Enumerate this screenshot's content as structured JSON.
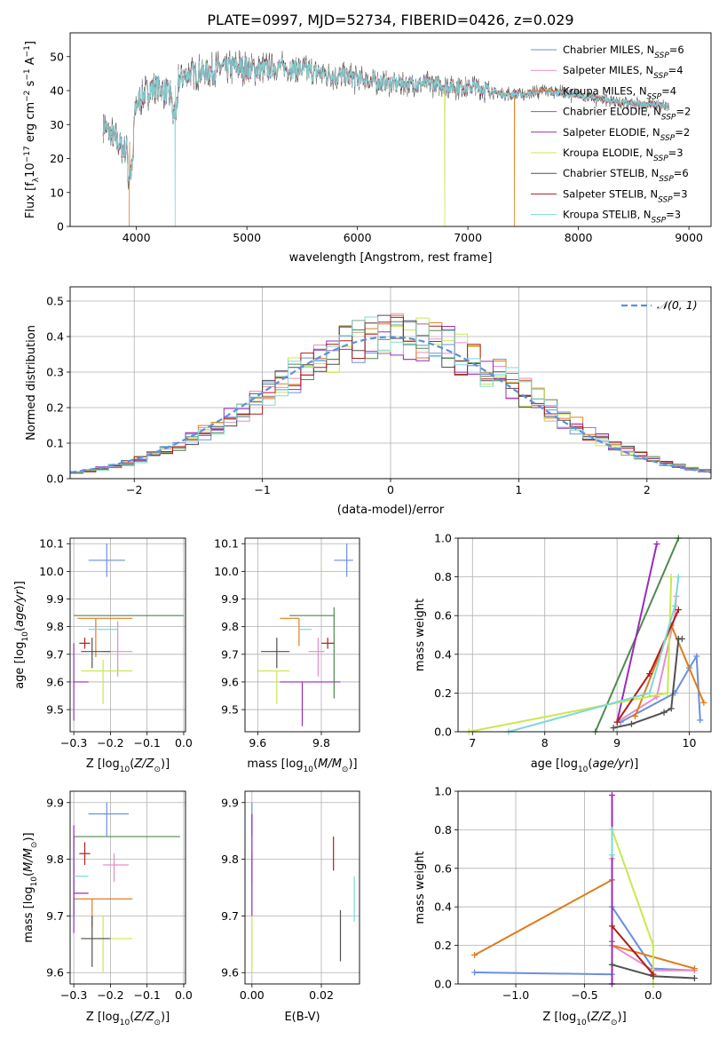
{
  "title": "PLATE=0997, MJD=52734, FIBERID=0426, z=0.029",
  "colors": {
    "Chabrier MILES": "#6a8fe0",
    "Salpeter MILES": "#e58ec8",
    "Kroupa MILES": "#e07c1e",
    "Chabrier ELODIE": "#4f8a4f",
    "Salpeter ELODIE": "#9a2cb8",
    "Kroupa ELODIE": "#c9e84f",
    "Chabrier STELIB": "#505050",
    "Salpeter STELIB": "#b01c1c",
    "Kroupa STELIB": "#80d8d8",
    "gaussian": "#5b8fe0",
    "grid": "#b0b0b0"
  },
  "chart_data": [
    {
      "type": "line",
      "panel": "spectrum",
      "xlabel": "wavelength [Angstrom, rest frame]",
      "ylabel": "Flux [f_λ 10^-17 erg cm^-2 s^-1 A^-1]",
      "xlim": [
        3400,
        9200
      ],
      "ylim": [
        0,
        57
      ],
      "xticks": [
        4000,
        5000,
        6000,
        7000,
        8000,
        9000
      ],
      "yticks": [
        0,
        10,
        20,
        30,
        40,
        50
      ],
      "legend_position": "top-right",
      "legend": [
        {
          "name": "Chabrier MILES",
          "prefix": "Chabrier MILES, N",
          "sub": "SSP",
          "suffix": "=6"
        },
        {
          "name": "Salpeter MILES",
          "prefix": "Salpeter MILES, N",
          "sub": "SSP",
          "suffix": "=4"
        },
        {
          "name": "Kroupa MILES",
          "prefix": "Kroupa MILES, N",
          "sub": "SSP",
          "suffix": "=4"
        },
        {
          "name": "Chabrier ELODIE",
          "prefix": "Chabrier ELODIE, N",
          "sub": "SSP",
          "suffix": "=2"
        },
        {
          "name": "Salpeter ELODIE",
          "prefix": "Salpeter ELODIE, N",
          "sub": "SSP",
          "suffix": "=2"
        },
        {
          "name": "Kroupa ELODIE",
          "prefix": "Kroupa ELODIE, N",
          "sub": "SSP",
          "suffix": "=3"
        },
        {
          "name": "Chabrier STELIB",
          "prefix": "Chabrier STELIB, N",
          "sub": "SSP",
          "suffix": "=6"
        },
        {
          "name": "Salpeter STELIB",
          "prefix": "Salpeter STELIB, N",
          "sub": "SSP",
          "suffix": "=3"
        },
        {
          "name": "Kroupa STELIB",
          "prefix": "Kroupa STELIB, N",
          "sub": "SSP",
          "suffix": "=3"
        }
      ],
      "continuum": {
        "x": [
          3700,
          3800,
          3900,
          3960,
          4000,
          4100,
          4200,
          4300,
          4400,
          4500,
          4700,
          4900,
          5100,
          5300,
          5500,
          5700,
          5900,
          6100,
          6300,
          6500,
          6700,
          6900,
          7100,
          7300,
          7500,
          7700,
          7900,
          8100,
          8300,
          8500,
          8700,
          8820
        ],
        "y": [
          30,
          26,
          22,
          27,
          36,
          40,
          41,
          39,
          44,
          45,
          46,
          47,
          46,
          47,
          46,
          45,
          44,
          43,
          42,
          42,
          42,
          41,
          41,
          39,
          39,
          40,
          39,
          38,
          37,
          36,
          36,
          35
        ]
      },
      "features": [
        {
          "series": "Kroupa MILES",
          "x": 3935,
          "y": 0
        },
        {
          "series": "Kroupa STELIB",
          "x": 4350,
          "y": 0
        },
        {
          "series": "Kroupa ELODIE",
          "x": 6790,
          "y": 0
        },
        {
          "series": "Kroupa MILES",
          "x": 7420,
          "y": 0
        }
      ]
    },
    {
      "type": "step-histogram",
      "panel": "residuals",
      "xlabel": "(data-model)/error",
      "ylabel": "Normed distribution",
      "xlim": [
        -2.5,
        2.5
      ],
      "ylim": [
        0,
        0.54
      ],
      "xticks": [
        -2,
        -1,
        0,
        1,
        2
      ],
      "yticks": [
        0.0,
        0.1,
        0.2,
        0.3,
        0.4,
        0.5
      ],
      "legend_position": "top-right",
      "legend_label": "𝒩(0, 1)",
      "bin_width": 0.1
    },
    {
      "type": "scatter-errorbar",
      "panel": "age-vs-Z",
      "xlabel": "Z [log10(Z/Z⊙)]",
      "ylabel": "age [log10(age/yr)]",
      "xlim": [
        -0.31,
        0.005
      ],
      "ylim": [
        9.42,
        10.12
      ],
      "xticks": [
        -0.3,
        -0.2,
        -0.1,
        0.0
      ],
      "yticks": [
        9.5,
        9.6,
        9.7,
        9.8,
        9.9,
        10.0,
        10.1
      ],
      "points": [
        {
          "series": "Chabrier MILES",
          "x": -0.21,
          "y": 10.04,
          "xerr": [
            0.05,
            0.05
          ],
          "yerr": [
            0.06,
            0.06
          ]
        },
        {
          "series": "Salpeter MILES",
          "x": -0.18,
          "y": 9.71,
          "xerr": [
            0.04,
            0.04
          ],
          "yerr": [
            0.09,
            0.11
          ]
        },
        {
          "series": "Kroupa MILES",
          "x": -0.24,
          "y": 9.83,
          "xerr": [
            0.05,
            0.1
          ],
          "yerr": [
            0.14,
            0
          ]
        },
        {
          "series": "Chabrier ELODIE",
          "x": -0.3,
          "y": 9.84,
          "xerr": [
            0,
            0.3
          ],
          "yerr": [
            0,
            0
          ]
        },
        {
          "series": "Salpeter ELODIE",
          "x": -0.3,
          "y": 9.6,
          "xerr": [
            0,
            0.04
          ],
          "yerr": [
            0.14,
            0.14
          ]
        },
        {
          "series": "Kroupa ELODIE",
          "x": -0.22,
          "y": 9.64,
          "xerr": [
            0.06,
            0.08
          ],
          "yerr": [
            0.12,
            0.04
          ]
        },
        {
          "series": "Chabrier STELIB",
          "x": -0.25,
          "y": 9.71,
          "xerr": [
            0.03,
            0.05
          ],
          "yerr": [
            0.06,
            0.05
          ]
        },
        {
          "series": "Salpeter STELIB",
          "x": -0.27,
          "y": 9.74,
          "xerr": [
            0.015,
            0.015
          ],
          "yerr": [
            0.02,
            0.02
          ]
        },
        {
          "series": "Kroupa STELIB",
          "x": -0.22,
          "y": 9.79,
          "xerr": [
            0.04,
            0.04
          ],
          "yerr": [
            0,
            0
          ]
        }
      ]
    },
    {
      "type": "scatter-errorbar",
      "panel": "age-vs-mass",
      "xlabel": "mass [log10(M/M⊙)]",
      "ylabel": "",
      "xlim": [
        9.56,
        9.92
      ],
      "ylim": [
        9.42,
        10.12
      ],
      "xticks": [
        9.6,
        9.8
      ],
      "yticks": [
        9.5,
        9.6,
        9.7,
        9.8,
        9.9,
        10.0,
        10.1
      ],
      "points": [
        {
          "series": "Chabrier MILES",
          "x": 9.88,
          "y": 10.04,
          "xerr": [
            0.04,
            0.02
          ],
          "yerr": [
            0.06,
            0.06
          ]
        },
        {
          "series": "Salpeter MILES",
          "x": 9.79,
          "y": 9.71,
          "xerr": [
            0.03,
            0.02
          ],
          "yerr": [
            0.09,
            0.05
          ]
        },
        {
          "series": "Kroupa MILES",
          "x": 9.73,
          "y": 9.83,
          "xerr": [
            0.06,
            0
          ],
          "yerr": [
            0.1,
            0
          ]
        },
        {
          "series": "Chabrier ELODIE",
          "x": 9.84,
          "y": 9.84,
          "xerr": [
            0.14,
            0
          ],
          "yerr": [
            0.3,
            0.03
          ]
        },
        {
          "series": "Salpeter ELODIE",
          "x": 9.74,
          "y": 9.6,
          "xerr": [
            0.07,
            0.12
          ],
          "yerr": [
            0.16,
            0
          ]
        },
        {
          "series": "Kroupa ELODIE",
          "x": 9.66,
          "y": 9.64,
          "xerr": [
            0.06,
            0.04
          ],
          "yerr": [
            0.12,
            0
          ]
        },
        {
          "series": "Chabrier STELIB",
          "x": 9.66,
          "y": 9.71,
          "xerr": [
            0.05,
            0.04
          ],
          "yerr": [
            0.06,
            0.05
          ]
        },
        {
          "series": "Salpeter STELIB",
          "x": 9.82,
          "y": 9.74,
          "xerr": [
            0.02,
            0.02
          ],
          "yerr": [
            0.02,
            0.02
          ]
        },
        {
          "series": "Kroupa STELIB",
          "x": 9.77,
          "y": 9.79,
          "xerr": [
            0.04,
            0
          ],
          "yerr": [
            0,
            0
          ]
        }
      ]
    },
    {
      "type": "line",
      "panel": "mass-weight-vs-age",
      "xlabel": "age [log10(age/yr)]",
      "ylabel": "mass weight",
      "xlim": [
        6.8,
        10.3
      ],
      "ylim": [
        0,
        1.0
      ],
      "xticks": [
        7,
        8,
        9,
        10
      ],
      "yticks": [
        0.0,
        0.2,
        0.4,
        0.6,
        0.8,
        1.0
      ],
      "series": [
        {
          "name": "Chabrier MILES",
          "x": [
            9.05,
            9.8,
            10.0,
            10.1,
            10.15
          ],
          "y": [
            0.05,
            0.2,
            0.33,
            0.39,
            0.06
          ]
        },
        {
          "name": "Salpeter MILES",
          "x": [
            9.0,
            9.55,
            9.8,
            9.82
          ],
          "y": [
            0.05,
            0.18,
            0.6,
            0.7
          ]
        },
        {
          "name": "Kroupa MILES",
          "x": [
            9.25,
            9.75,
            10.2
          ],
          "y": [
            0.08,
            0.55,
            0.15
          ]
        },
        {
          "name": "Chabrier ELODIE",
          "x": [
            8.7,
            9.85
          ],
          "y": [
            0.0,
            1.0
          ]
        },
        {
          "name": "Salpeter ELODIE",
          "x": [
            9.0,
            9.55
          ],
          "y": [
            0.05,
            0.97
          ]
        },
        {
          "name": "Kroupa ELODIE",
          "x": [
            6.95,
            9.7,
            9.75
          ],
          "y": [
            0.0,
            0.2,
            0.8
          ]
        },
        {
          "name": "Chabrier STELIB",
          "x": [
            8.95,
            9.2,
            9.65,
            9.75,
            9.85,
            9.9
          ],
          "y": [
            0.02,
            0.04,
            0.1,
            0.12,
            0.48,
            0.48
          ]
        },
        {
          "name": "Salpeter STELIB",
          "x": [
            9.0,
            9.45,
            9.85
          ],
          "y": [
            0.05,
            0.3,
            0.63
          ]
        },
        {
          "name": "Kroupa STELIB",
          "x": [
            7.5,
            9.45,
            9.8,
            9.85
          ],
          "y": [
            0.0,
            0.2,
            0.65,
            0.8
          ]
        }
      ]
    },
    {
      "type": "scatter-errorbar",
      "panel": "mass-vs-Z",
      "xlabel": "Z [log10(Z/Z⊙)]",
      "ylabel": "mass [log10(M/M⊙)]",
      "xlim": [
        -0.31,
        0.005
      ],
      "ylim": [
        9.58,
        9.92
      ],
      "xticks": [
        -0.3,
        -0.2,
        -0.1,
        0.0
      ],
      "yticks": [
        9.6,
        9.7,
        9.8,
        9.9
      ],
      "points": [
        {
          "series": "Chabrier MILES",
          "x": -0.21,
          "y": 9.88,
          "xerr": [
            0.05,
            0.06
          ],
          "yerr": [
            0.04,
            0.02
          ]
        },
        {
          "series": "Salpeter MILES",
          "x": -0.19,
          "y": 9.79,
          "xerr": [
            0.03,
            0.04
          ],
          "yerr": [
            0.03,
            0.02
          ]
        },
        {
          "series": "Kroupa MILES",
          "x": -0.25,
          "y": 9.73,
          "xerr": [
            0.05,
            0.11
          ],
          "yerr": [
            0.05,
            0
          ]
        },
        {
          "series": "Chabrier ELODIE",
          "x": -0.3,
          "y": 9.84,
          "xerr": [
            0,
            0.29
          ],
          "yerr": [
            0.14,
            0
          ]
        },
        {
          "series": "Salpeter ELODIE",
          "x": -0.3,
          "y": 9.74,
          "xerr": [
            0,
            0.04
          ],
          "yerr": [
            0.07,
            0.12
          ]
        },
        {
          "series": "Kroupa ELODIE",
          "x": -0.22,
          "y": 9.66,
          "xerr": [
            0.06,
            0.08
          ],
          "yerr": [
            0.06,
            0.04
          ]
        },
        {
          "series": "Chabrier STELIB",
          "x": -0.25,
          "y": 9.66,
          "xerr": [
            0.03,
            0.05
          ],
          "yerr": [
            0.05,
            0.04
          ]
        },
        {
          "series": "Salpeter STELIB",
          "x": -0.27,
          "y": 9.81,
          "xerr": [
            0.015,
            0.015
          ],
          "yerr": [
            0.02,
            0.02
          ]
        },
        {
          "series": "Kroupa STELIB",
          "x": -0.28,
          "y": 9.77,
          "xerr": [
            0.02,
            0.02
          ],
          "yerr": [
            0,
            0
          ]
        }
      ]
    },
    {
      "type": "scatter-errorbar",
      "panel": "mass-vs-EBV",
      "xlabel": "E(B-V)",
      "ylabel": "",
      "xlim": [
        -0.002,
        0.031
      ],
      "ylim": [
        9.58,
        9.92
      ],
      "xticks": [
        0.0,
        0.02
      ],
      "yticks": [
        9.6,
        9.7,
        9.8,
        9.9
      ],
      "points": [
        {
          "series": "Chabrier MILES",
          "x": 0.0,
          "y": 9.88,
          "xerr": [
            0,
            0
          ],
          "yerr": [
            0.04,
            0.02
          ]
        },
        {
          "series": "Salpeter MILES",
          "x": 0.0,
          "y": 9.79,
          "xerr": [
            0,
            0
          ],
          "yerr": [
            0.03,
            0.02
          ]
        },
        {
          "series": "Kroupa ELODIE",
          "x": 0.0,
          "y": 9.66,
          "xerr": [
            0,
            0
          ],
          "yerr": [
            0.06,
            0.04
          ]
        },
        {
          "series": "Salpeter ELODIE",
          "x": 0.0,
          "y": 9.79,
          "xerr": [
            0,
            0
          ],
          "yerr": [
            0.09,
            0.09
          ]
        },
        {
          "series": "Salpeter STELIB",
          "x": 0.0235,
          "y": 9.81,
          "xerr": [
            0,
            0
          ],
          "yerr": [
            0.03,
            0.03
          ]
        },
        {
          "series": "Chabrier STELIB",
          "x": 0.0255,
          "y": 9.66,
          "xerr": [
            0,
            0
          ],
          "yerr": [
            0.04,
            0.05
          ]
        },
        {
          "series": "Kroupa STELIB",
          "x": 0.0295,
          "y": 9.73,
          "xerr": [
            0,
            0
          ],
          "yerr": [
            0.04,
            0.04
          ]
        }
      ]
    },
    {
      "type": "line",
      "panel": "mass-weight-vs-Z",
      "xlabel": "Z [log10(Z/Z⊙)]",
      "ylabel": "mass weight",
      "xlim": [
        -1.42,
        0.42
      ],
      "ylim": [
        0,
        1.0
      ],
      "xticks": [
        -1.0,
        -0.5,
        0.0
      ],
      "yticks": [
        0.0,
        0.2,
        0.4,
        0.6,
        0.8,
        1.0
      ],
      "series": [
        {
          "name": "Chabrier MILES",
          "x": [
            -1.3,
            -0.3,
            -0.3,
            0.0,
            0.3
          ],
          "y": [
            0.06,
            0.05,
            0.4,
            0.08,
            0.07
          ]
        },
        {
          "name": "Salpeter MILES",
          "x": [
            -0.3,
            -0.3,
            0.0,
            0.3
          ],
          "y": [
            0.65,
            0.2,
            0.07,
            0.07
          ]
        },
        {
          "name": "Kroupa MILES",
          "x": [
            -1.3,
            -0.3,
            -0.3,
            0.3
          ],
          "y": [
            0.15,
            0.54,
            0.2,
            0.08
          ]
        },
        {
          "name": "Chabrier ELODIE",
          "x": [
            -0.3,
            -0.3
          ],
          "y": [
            0.0,
            0.22
          ]
        },
        {
          "name": "Salpeter ELODIE",
          "x": [
            -0.3,
            -0.3
          ],
          "y": [
            0.0,
            0.98
          ]
        },
        {
          "name": "Kroupa ELODIE",
          "x": [
            -0.3,
            0.0,
            0.0
          ],
          "y": [
            0.8,
            0.2,
            0.0
          ]
        },
        {
          "name": "Chabrier STELIB",
          "x": [
            -0.3,
            0.0,
            0.3
          ],
          "y": [
            0.1,
            0.04,
            0.03
          ]
        },
        {
          "name": "Salpeter STELIB",
          "x": [
            -0.3,
            0.0
          ],
          "y": [
            0.3,
            0.05
          ]
        },
        {
          "name": "Kroupa STELIB",
          "x": [
            -0.3,
            -0.3
          ],
          "y": [
            0.8,
            0.67
          ]
        }
      ]
    }
  ]
}
